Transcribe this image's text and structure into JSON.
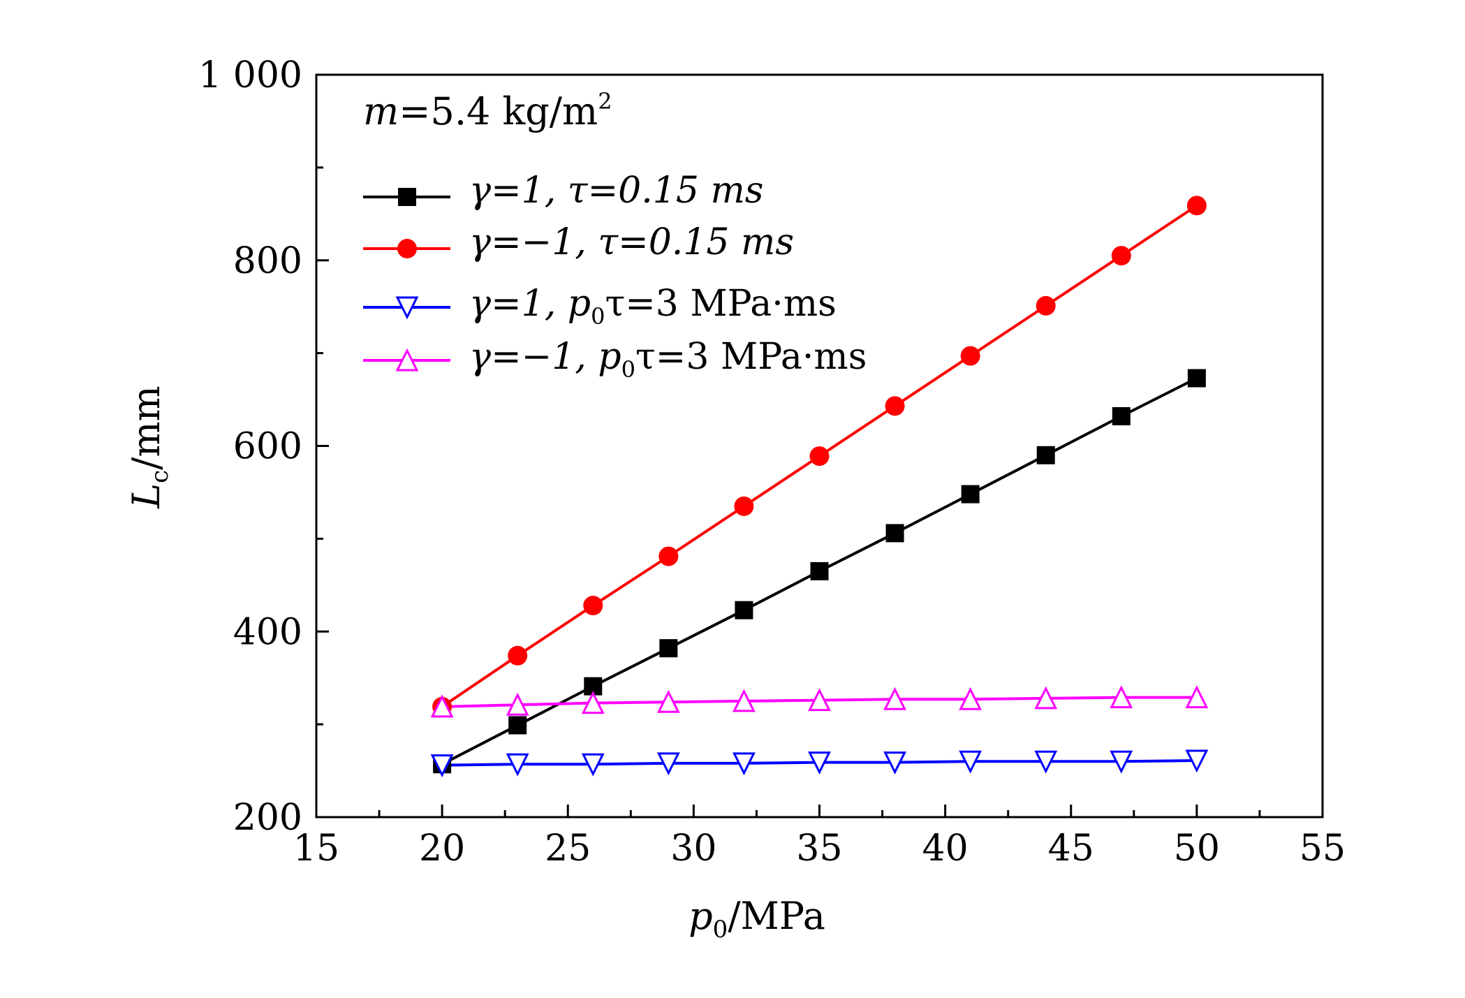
{
  "chart_data": {
    "type": "line",
    "annotation": {
      "var": "m",
      "text": "=5.4 kg/m",
      "sup": "2"
    },
    "x_axis": {
      "label_var": "p",
      "label_sub": "0",
      "label_unit": "/MPa",
      "range": [
        15,
        55
      ],
      "ticks": [
        15,
        20,
        25,
        30,
        35,
        40,
        45,
        50,
        55
      ],
      "tick_labels": [
        "15",
        "20",
        "25",
        "30",
        "35",
        "40",
        "45",
        "50",
        "55"
      ],
      "minor_step": 2.5
    },
    "y_axis": {
      "label_var": "L",
      "label_sub": "c",
      "label_unit": "/mm",
      "range": [
        200,
        1000
      ],
      "ticks": [
        200,
        400,
        600,
        800,
        1000
      ],
      "tick_labels": [
        "200",
        "400",
        "600",
        "800",
        "1 000"
      ],
      "minor_step": 100
    },
    "x": [
      20,
      23,
      26,
      29,
      32,
      35,
      38,
      41,
      44,
      47,
      50
    ],
    "series": [
      {
        "key": "s1",
        "legend": {
          "gamma": "γ=1, ",
          "tau_part": "τ=0.15 ms"
        },
        "color": "#000000",
        "marker": "square",
        "values": [
          257,
          299,
          341,
          382,
          423,
          465,
          506,
          548,
          590,
          632,
          673
        ]
      },
      {
        "key": "s2",
        "legend": {
          "gamma": "γ=−1, ",
          "tau_part": "τ=0.15 ms"
        },
        "color": "#ff0000",
        "marker": "circle",
        "values": [
          319,
          374,
          428,
          481,
          535,
          589,
          643,
          697,
          751,
          805,
          859
        ]
      },
      {
        "key": "s3",
        "legend": {
          "gamma": "γ=1, ",
          "p": "p",
          "sub": "0",
          "rest": "τ=3 MPa·ms"
        },
        "color": "#0000ff",
        "marker": "triangle-down",
        "values": [
          256,
          257,
          257,
          258,
          258,
          259,
          259,
          260,
          260,
          260,
          261
        ]
      },
      {
        "key": "s4",
        "legend": {
          "gamma": "γ=−1, ",
          "p": "p",
          "sub": "0",
          "rest": "τ=3 MPa·ms"
        },
        "color": "#ff00ff",
        "marker": "triangle-up",
        "values": [
          319,
          321,
          323,
          324,
          325,
          326,
          327,
          327,
          328,
          329,
          329
        ]
      }
    ],
    "grid": false,
    "legend_position": "top-left"
  }
}
